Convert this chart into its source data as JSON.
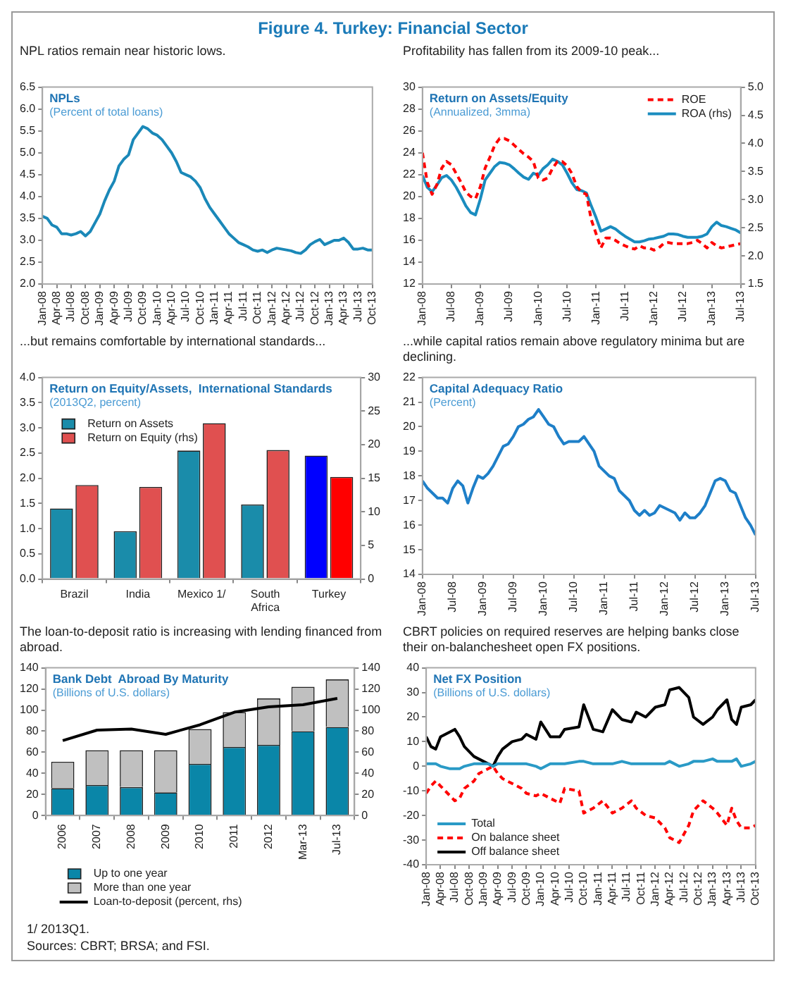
{
  "chart_data": [
    {
      "type": "line",
      "title": "NPLs",
      "subtitle": "(Percent of total loans)",
      "annotations": [
        "Figure 4. Turkey: Financial Sector",
        "NPL ratios remain near historic lows."
      ],
      "marker": "none",
      "grid": false,
      "x": [
        "2008-01",
        "2008-02",
        "2008-03",
        "2008-04",
        "2008-05",
        "2008-06",
        "2008-07",
        "2008-08",
        "2008-09",
        "2008-10",
        "2008-11",
        "2008-12",
        "2009-01",
        "2009-02",
        "2009-03",
        "2009-04",
        "2009-05",
        "2009-06",
        "2009-07",
        "2009-08",
        "2009-09",
        "2009-10",
        "2009-11",
        "2009-12",
        "2010-01",
        "2010-02",
        "2010-03",
        "2010-04",
        "2010-05",
        "2010-06",
        "2010-07",
        "2010-08",
        "2010-09",
        "2010-10",
        "2010-11",
        "2010-12",
        "2011-01",
        "2011-02",
        "2011-03",
        "2011-04",
        "2011-05",
        "2011-06",
        "2011-07",
        "2011-08",
        "2011-09",
        "2011-10",
        "2011-11",
        "2011-12",
        "2012-01",
        "2012-02",
        "2012-03",
        "2012-04",
        "2012-05",
        "2012-06",
        "2012-07",
        "2012-08",
        "2012-09",
        "2012-10",
        "2012-11",
        "2012-12",
        "2013-01",
        "2013-02",
        "2013-03",
        "2013-04",
        "2013-05",
        "2013-06",
        "2013-07",
        "2013-08",
        "2013-09",
        "2013-10"
      ],
      "series": [
        {
          "color": "#1a88b8",
          "values": [
            3.55,
            3.5,
            3.35,
            3.3,
            3.15,
            3.15,
            3.12,
            3.15,
            3.2,
            3.1,
            3.2,
            3.4,
            3.6,
            3.9,
            4.15,
            4.35,
            4.7,
            4.85,
            4.95,
            5.3,
            5.45,
            5.6,
            5.55,
            5.45,
            5.4,
            5.3,
            5.15,
            5.0,
            4.8,
            4.55,
            4.5,
            4.45,
            4.35,
            4.2,
            3.95,
            3.75,
            3.6,
            3.45,
            3.3,
            3.15,
            3.05,
            2.95,
            2.9,
            2.85,
            2.78,
            2.75,
            2.78,
            2.72,
            2.78,
            2.82,
            2.8,
            2.78,
            2.76,
            2.72,
            2.7,
            2.78,
            2.9,
            2.97,
            3.02,
            2.9,
            2.95,
            3.0,
            3.0,
            3.05,
            2.95,
            2.8,
            2.8,
            2.82,
            2.78,
            2.78
          ]
        }
      ],
      "xlim": [
        "2008-01",
        "2013-10"
      ],
      "xticks": [
        {
          "value": "2008-01",
          "label": "Jan-08"
        },
        {
          "value": "2008-04",
          "label": "Apr-08"
        },
        {
          "value": "2008-07",
          "label": "Jul-08"
        },
        {
          "value": "2008-10",
          "label": "Oct-08"
        },
        {
          "value": "2009-01",
          "label": "Jan-09"
        },
        {
          "value": "2009-04",
          "label": "Apr-09"
        },
        {
          "value": "2009-07",
          "label": "Jul-09"
        },
        {
          "value": "2009-10",
          "label": "Oct-09"
        },
        {
          "value": "2010-01",
          "label": "Jan-10"
        },
        {
          "value": "2010-04",
          "label": "Apr-10"
        },
        {
          "value": "2010-07",
          "label": "Jul-10"
        },
        {
          "value": "2010-10",
          "label": "Oct-10"
        },
        {
          "value": "2011-01",
          "label": "Jan-11"
        },
        {
          "value": "2011-04",
          "label": "Apr-11"
        },
        {
          "value": "2011-07",
          "label": "Jul-11"
        },
        {
          "value": "2011-10",
          "label": "Oct-11"
        },
        {
          "value": "2012-01",
          "label": "Jan-12"
        },
        {
          "value": "2012-04",
          "label": "Apr-12"
        },
        {
          "value": "2012-07",
          "label": "Jul-12"
        },
        {
          "value": "2012-10",
          "label": "Oct-12"
        },
        {
          "value": "2013-01",
          "label": "Jan-13"
        },
        {
          "value": "2013-04",
          "label": "Apr-13"
        },
        {
          "value": "2013-07",
          "label": "Jul-13"
        },
        {
          "value": "2013-10",
          "label": "Oct-13"
        }
      ],
      "ylim": [
        2,
        6.5
      ],
      "yticks": [
        {
          "value": 2,
          "label": "2.0"
        },
        {
          "value": 2.5,
          "label": "2.5"
        },
        {
          "value": 3,
          "label": "3.0"
        },
        {
          "value": 3.5,
          "label": "3.5"
        },
        {
          "value": 4,
          "label": "4.0"
        },
        {
          "value": 4.5,
          "label": "4.5"
        },
        {
          "value": 5,
          "label": "5.0"
        },
        {
          "value": 5.5,
          "label": "5.5"
        },
        {
          "value": 6,
          "label": "6.0"
        },
        {
          "value": 6.5,
          "label": "6.5"
        }
      ]
    },
    {
      "type": "line",
      "title": "Return on Assets/Equity",
      "subtitle": "(Annualized, 3mma)",
      "annotations": [
        "Profitability has fallen from its 2009-10 peak..."
      ],
      "marker": "none",
      "grid": false,
      "legend": "top right",
      "x": [
        "2008-01",
        "2008-02",
        "2008-03",
        "2008-04",
        "2008-05",
        "2008-06",
        "2008-07",
        "2008-08",
        "2008-09",
        "2008-10",
        "2008-11",
        "2008-12",
        "2009-01",
        "2009-02",
        "2009-03",
        "2009-04",
        "2009-05",
        "2009-06",
        "2009-07",
        "2009-08",
        "2009-09",
        "2009-10",
        "2009-11",
        "2009-12",
        "2010-01",
        "2010-02",
        "2010-03",
        "2010-04",
        "2010-05",
        "2010-06",
        "2010-07",
        "2010-08",
        "2010-09",
        "2010-10",
        "2010-11",
        "2010-12",
        "2011-01",
        "2011-02",
        "2011-03",
        "2011-04",
        "2011-05",
        "2011-06",
        "2011-07",
        "2011-08",
        "2011-09",
        "2011-10",
        "2011-11",
        "2011-12",
        "2012-01",
        "2012-02",
        "2012-03",
        "2012-04",
        "2012-05",
        "2012-06",
        "2012-07",
        "2012-08",
        "2012-09",
        "2012-10",
        "2012-11",
        "2012-12",
        "2013-01",
        "2013-02",
        "2013-03",
        "2013-04",
        "2013-05",
        "2013-06",
        "2013-07"
      ],
      "series": [
        {
          "name": "ROE",
          "color": "#ff0000",
          "line_style": "dashed",
          "values": [
            24.0,
            21.3,
            20.2,
            21.1,
            22.6,
            23.2,
            22.9,
            22.1,
            21.3,
            20.4,
            20.0,
            19.8,
            20.9,
            22.6,
            23.6,
            24.7,
            25.3,
            25.3,
            25.1,
            24.7,
            24.3,
            23.9,
            23.6,
            23.2,
            21.7,
            21.5,
            21.7,
            22.6,
            23.2,
            23.2,
            22.8,
            22.1,
            20.9,
            20.4,
            20.2,
            17.9,
            16.6,
            15.3,
            16.2,
            16.2,
            16.0,
            15.7,
            15.5,
            15.3,
            15.2,
            15.5,
            15.3,
            15.3,
            15.1,
            15.3,
            15.7,
            15.8,
            15.7,
            15.7,
            15.7,
            15.7,
            15.8,
            16.0,
            15.7,
            15.3,
            15.8,
            15.5,
            15.3,
            15.4,
            15.5,
            15.6,
            15.7
          ]
        },
        {
          "name": "ROA (rhs)",
          "color": "#1a8cbf",
          "line_style": "solid",
          "axis": "y2",
          "values": [
            3.43,
            3.22,
            3.14,
            3.26,
            3.39,
            3.43,
            3.35,
            3.22,
            3.06,
            2.89,
            2.77,
            2.73,
            3.01,
            3.35,
            3.47,
            3.59,
            3.66,
            3.65,
            3.62,
            3.55,
            3.47,
            3.4,
            3.36,
            3.47,
            3.43,
            3.55,
            3.62,
            3.72,
            3.68,
            3.62,
            3.47,
            3.3,
            3.18,
            3.16,
            3.12,
            2.89,
            2.68,
            2.44,
            2.48,
            2.52,
            2.48,
            2.41,
            2.35,
            2.3,
            2.25,
            2.25,
            2.27,
            2.3,
            2.31,
            2.33,
            2.35,
            2.39,
            2.39,
            2.38,
            2.35,
            2.33,
            2.33,
            2.33,
            2.35,
            2.39,
            2.52,
            2.6,
            2.54,
            2.52,
            2.49,
            2.46,
            2.41
          ]
        }
      ],
      "xlim": [
        "2008-01",
        "2013-07"
      ],
      "xticks": [
        {
          "value": "2008-01",
          "label": "Jan-08"
        },
        {
          "value": "2008-07",
          "label": "Jul-08"
        },
        {
          "value": "2009-01",
          "label": "Jan-09"
        },
        {
          "value": "2009-07",
          "label": "Jul-09"
        },
        {
          "value": "2010-01",
          "label": "Jan-10"
        },
        {
          "value": "2010-07",
          "label": "Jul-10"
        },
        {
          "value": "2011-01",
          "label": "Jan-11"
        },
        {
          "value": "2011-07",
          "label": "Jul-11"
        },
        {
          "value": "2012-01",
          "label": "Jan-12"
        },
        {
          "value": "2012-07",
          "label": "Jul-12"
        },
        {
          "value": "2013-01",
          "label": "Jan-13"
        },
        {
          "value": "2013-07",
          "label": "Jul-13"
        }
      ],
      "ylim": [
        12,
        30
      ],
      "yticks": [
        12,
        14,
        16,
        18,
        20,
        22,
        24,
        26,
        28,
        30
      ],
      "y2lim": [
        1.5,
        5
      ],
      "y2ticks": [
        {
          "value": 1.5,
          "label": "1.5"
        },
        {
          "value": 2,
          "label": "2.0"
        },
        {
          "value": 2.5,
          "label": "2.5"
        },
        {
          "value": 3,
          "label": "3.0"
        },
        {
          "value": 3.5,
          "label": "3.5"
        },
        {
          "value": 4,
          "label": "4.0"
        },
        {
          "value": 4.5,
          "label": "4.5"
        },
        {
          "value": 5,
          "label": "5.0"
        }
      ]
    },
    {
      "type": "bar",
      "title": "Return on Equity/Assets,  International Standards",
      "subtitle": "(2013Q2, percent)",
      "annotations": [
        "...but remains comfortable by international standards..."
      ],
      "grid": false,
      "legend": "top left",
      "categories": [
        "Brazil",
        "India",
        "Mexico 1/",
        "South Africa",
        "Turkey"
      ],
      "series": [
        {
          "name": "Return on Assets",
          "color": "#1a8caa",
          "colors": [
            "#1a8caa",
            "#1a8caa",
            "#1a8caa",
            "#1a8caa",
            "#0000ff"
          ],
          "values": [
            1.4,
            0.95,
            2.55,
            1.48,
            2.45
          ]
        },
        {
          "name": "Return on Equity (rhs)",
          "color": "#e05050",
          "colors": [
            "#e05050",
            "#e05050",
            "#e05050",
            "#e05050",
            "#ff0000"
          ],
          "axis": "y2",
          "values": [
            14,
            13.7,
            23.2,
            19.2,
            15.2
          ]
        }
      ],
      "ylim": [
        0,
        4
      ],
      "yticks": [
        {
          "value": 0,
          "label": "0.0"
        },
        {
          "value": 0.5,
          "label": "0.5"
        },
        {
          "value": 1,
          "label": "1.0"
        },
        {
          "value": 1.5,
          "label": "1.5"
        },
        {
          "value": 2,
          "label": "2.0"
        },
        {
          "value": 2.5,
          "label": "2.5"
        },
        {
          "value": 3,
          "label": "3.0"
        },
        {
          "value": 3.5,
          "label": "3.5"
        },
        {
          "value": 4,
          "label": "4.0"
        }
      ],
      "y2lim": [
        0,
        30
      ],
      "y2ticks": [
        0,
        5,
        10,
        15,
        20,
        25,
        30
      ]
    },
    {
      "type": "line",
      "title": "Capital Adequacy Ratio",
      "subtitle": "(Percent)",
      "annotations": [
        "...while capital ratios remain above regulatory minima but are declining."
      ],
      "marker": "none",
      "grid": false,
      "x": [
        "2008-01",
        "2008-02",
        "2008-03",
        "2008-04",
        "2008-05",
        "2008-06",
        "2008-07",
        "2008-08",
        "2008-09",
        "2008-10",
        "2008-11",
        "2008-12",
        "2009-01",
        "2009-02",
        "2009-03",
        "2009-04",
        "2009-05",
        "2009-06",
        "2009-07",
        "2009-08",
        "2009-09",
        "2009-10",
        "2009-11",
        "2009-12",
        "2010-01",
        "2010-02",
        "2010-03",
        "2010-04",
        "2010-05",
        "2010-06",
        "2010-07",
        "2010-08",
        "2010-09",
        "2010-10",
        "2010-11",
        "2010-12",
        "2011-01",
        "2011-02",
        "2011-03",
        "2011-04",
        "2011-05",
        "2011-06",
        "2011-07",
        "2011-08",
        "2011-09",
        "2011-10",
        "2011-11",
        "2011-12",
        "2012-01",
        "2012-02",
        "2012-03",
        "2012-04",
        "2012-05",
        "2012-06",
        "2012-07",
        "2012-08",
        "2012-09",
        "2012-10",
        "2012-11",
        "2012-12",
        "2013-01",
        "2013-02",
        "2013-03",
        "2013-04",
        "2013-05",
        "2013-06",
        "2013-07"
      ],
      "series": [
        {
          "color": "#1e7fc8",
          "values": [
            17.8,
            17.5,
            17.3,
            17.1,
            17.1,
            16.9,
            17.5,
            17.8,
            17.6,
            16.9,
            17.5,
            18.0,
            17.9,
            18.1,
            18.4,
            18.8,
            19.2,
            19.3,
            19.6,
            20.0,
            20.1,
            20.3,
            20.4,
            20.7,
            20.4,
            20.1,
            20.0,
            19.6,
            19.3,
            19.4,
            19.4,
            19.4,
            19.6,
            19.3,
            19.0,
            18.4,
            18.2,
            18.0,
            17.9,
            17.4,
            17.2,
            17.0,
            16.6,
            16.4,
            16.6,
            16.4,
            16.5,
            16.8,
            16.7,
            16.6,
            16.5,
            16.2,
            16.5,
            16.3,
            16.3,
            16.5,
            16.8,
            17.3,
            17.8,
            17.9,
            17.8,
            17.4,
            17.3,
            16.8,
            16.3,
            16.0,
            15.6
          ]
        }
      ],
      "xlim": [
        "2008-01",
        "2013-07"
      ],
      "xticks": [
        {
          "value": "2008-01",
          "label": "Jan-08"
        },
        {
          "value": "2008-07",
          "label": "Jul-08"
        },
        {
          "value": "2009-01",
          "label": "Jan-09"
        },
        {
          "value": "2009-07",
          "label": "Jul-09"
        },
        {
          "value": "2010-01",
          "label": "Jan-10"
        },
        {
          "value": "2010-07",
          "label": "Jul-10"
        },
        {
          "value": "2011-01",
          "label": "Jan-11"
        },
        {
          "value": "2011-07",
          "label": "Jul-11"
        },
        {
          "value": "2012-01",
          "label": "Jan-12"
        },
        {
          "value": "2012-07",
          "label": "Jul-12"
        },
        {
          "value": "2013-01",
          "label": "Jan-13"
        },
        {
          "value": "2013-07",
          "label": "Jul-13"
        }
      ],
      "ylim": [
        14,
        22
      ],
      "yticks": [
        14,
        15,
        16,
        17,
        18,
        19,
        20,
        21,
        22
      ]
    },
    {
      "type": "bar",
      "stacked": true,
      "title": "Bank Debt  Abroad By Maturity",
      "subtitle": "(Billions of U.S. dollars)",
      "annotations": [
        "The loan-to-deposit ratio is increasing with lending financed from abroad."
      ],
      "grid": false,
      "legend": "bottom",
      "categories": [
        "2006",
        "2007",
        "2008",
        "2009",
        "2010",
        "2011",
        "2012",
        "Mar-13",
        "Jul-13"
      ],
      "series": [
        {
          "name": "Up to one year",
          "color": "#0a86a8",
          "values": [
            26,
            29,
            27,
            22,
            49,
            65,
            67,
            80,
            84
          ]
        },
        {
          "name": "More than one year",
          "color": "#c0c0c0",
          "values": [
            25,
            33,
            35,
            40,
            33,
            33,
            44,
            42,
            45
          ]
        },
        {
          "name": "Loan-to-deposit (percent, rhs)",
          "type": "line",
          "color": "#000000",
          "axis": "y2",
          "marker": "none",
          "values": [
            71,
            81,
            82,
            77,
            86,
            98,
            103,
            105,
            111
          ]
        }
      ],
      "ylim": [
        0,
        140
      ],
      "yticks": [
        0,
        20,
        40,
        60,
        80,
        100,
        120,
        140
      ],
      "y2lim": [
        0,
        140
      ],
      "y2ticks": [
        0,
        20,
        40,
        60,
        80,
        100,
        120,
        140
      ]
    },
    {
      "type": "line",
      "title": "Net FX Position",
      "subtitle": "(Billions of U.S. dollars)",
      "annotations": [
        "CBRT policies on required reserves are helping banks close their on-balanchesheet open FX positions.",
        "1/ 2013Q1.",
        "Sources: CBRT; BRSA; and FSI."
      ],
      "marker": "none",
      "grid": false,
      "legend": "bottom left",
      "x": [
        "2008-01",
        "2008-02",
        "2008-03",
        "2008-04",
        "2008-06",
        "2008-07",
        "2008-08",
        "2008-09",
        "2008-11",
        "2008-12",
        "2009-02",
        "2009-03",
        "2009-04",
        "2009-05",
        "2009-07",
        "2009-09",
        "2009-10",
        "2009-12",
        "2010-01",
        "2010-03",
        "2010-05",
        "2010-06",
        "2010-09",
        "2010-10",
        "2010-12",
        "2011-02",
        "2011-04",
        "2011-06",
        "2011-08",
        "2011-09",
        "2011-11",
        "2012-01",
        "2012-03",
        "2012-04",
        "2012-06",
        "2012-08",
        "2012-09",
        "2012-11",
        "2013-01",
        "2013-02",
        "2013-04",
        "2013-05",
        "2013-06",
        "2013-07",
        "2013-09",
        "2013-10"
      ],
      "series": [
        {
          "name": "Total",
          "color": "#2a9ac6",
          "line_style": "solid",
          "values": [
            1,
            1,
            1,
            0,
            -1,
            -1,
            -1,
            0,
            1,
            1,
            1,
            0,
            1,
            1,
            1,
            1,
            1,
            0,
            -1,
            1,
            1,
            1,
            2,
            2,
            1,
            1,
            1,
            2,
            1,
            1,
            1,
            1,
            1,
            2,
            0,
            1,
            2,
            2,
            3,
            2,
            2,
            2,
            3,
            0,
            1,
            2
          ]
        },
        {
          "name": "On balance sheet",
          "color": "#ff0000",
          "line_style": "dashed",
          "values": [
            -11,
            -8,
            -6,
            -8,
            -12,
            -14,
            -13,
            -9,
            -6,
            -3,
            -1,
            0,
            -3,
            -5,
            -7,
            -9,
            -11,
            -12,
            -11,
            -13,
            -15,
            -9,
            -10,
            -19,
            -17,
            -14,
            -19,
            -17,
            -14,
            -17,
            -20,
            -21,
            -25,
            -29,
            -31,
            -24,
            -18,
            -14,
            -17,
            -19,
            -24,
            -17,
            -22,
            -25,
            -25,
            -24
          ]
        },
        {
          "name": "Off balance sheet",
          "color": "#000000",
          "line_style": "solid",
          "values": [
            12,
            8,
            7,
            12,
            14,
            15,
            12,
            8,
            4,
            3,
            1,
            0,
            4,
            7,
            10,
            11,
            13,
            11,
            18,
            12,
            12,
            15,
            16,
            25,
            15,
            14,
            23,
            19,
            18,
            22,
            20,
            24,
            25,
            31,
            32,
            28,
            20,
            17,
            20,
            23,
            27,
            19,
            17,
            24,
            25,
            27
          ]
        }
      ],
      "xlim": [
        "2008-01",
        "2013-10"
      ],
      "xticks": [
        {
          "value": "2008-01",
          "label": "Jan-08"
        },
        {
          "value": "2008-04",
          "label": "Apr-08"
        },
        {
          "value": "2008-07",
          "label": "Jul-08"
        },
        {
          "value": "2008-10",
          "label": "Oct-08"
        },
        {
          "value": "2009-01",
          "label": "Jan-09"
        },
        {
          "value": "2009-04",
          "label": "Apr-09"
        },
        {
          "value": "2009-07",
          "label": "Jul-09"
        },
        {
          "value": "2009-10",
          "label": "Oct-09"
        },
        {
          "value": "2010-01",
          "label": "Jan-10"
        },
        {
          "value": "2010-04",
          "label": "Apr-10"
        },
        {
          "value": "2010-07",
          "label": "Jul-10"
        },
        {
          "value": "2010-10",
          "label": "Oct-10"
        },
        {
          "value": "2011-01",
          "label": "Jan-11"
        },
        {
          "value": "2011-04",
          "label": "Apr-11"
        },
        {
          "value": "2011-07",
          "label": "Jul-11"
        },
        {
          "value": "2011-10",
          "label": "Oct-11"
        },
        {
          "value": "2012-01",
          "label": "Jan-12"
        },
        {
          "value": "2012-04",
          "label": "Apr-12"
        },
        {
          "value": "2012-07",
          "label": "Jul-12"
        },
        {
          "value": "2012-10",
          "label": "Oct-12"
        },
        {
          "value": "2013-01",
          "label": "Jan-13"
        },
        {
          "value": "2013-04",
          "label": "Apr-13"
        },
        {
          "value": "2013-07",
          "label": "Jul-13"
        },
        {
          "value": "2013-10",
          "label": "Oct-13"
        }
      ],
      "ylim": [
        -40,
        40
      ],
      "yticks": [
        -40,
        -30,
        -20,
        -10,
        0,
        10,
        20,
        30,
        40
      ]
    }
  ]
}
